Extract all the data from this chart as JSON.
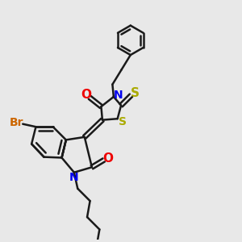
{
  "bg_color": "#e8e8e8",
  "bond_color": "#1a1a1a",
  "bond_width": 1.8,
  "dbo": 0.08,
  "N_color": "#0000ee",
  "O_color": "#ee0000",
  "S_color": "#aaaa00",
  "Br_color": "#cc6600",
  "font_size": 10,
  "figsize": [
    3.0,
    3.0
  ],
  "dpi": 100,
  "xlim": [
    0,
    10
  ],
  "ylim": [
    0,
    10
  ]
}
